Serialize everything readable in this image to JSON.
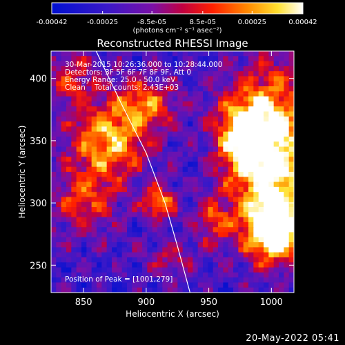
{
  "chart_data": {
    "type": "heatmap",
    "title": "Reconstructed RHESSI Image",
    "xlabel": "Heliocentric X (arcsec)",
    "ylabel": "Heliocentric Y (arcsec)",
    "xlim": [
      824,
      1018
    ],
    "ylim": [
      228,
      422
    ],
    "xticks": [
      850,
      900,
      950,
      1000
    ],
    "yticks": [
      250,
      300,
      350,
      400
    ],
    "colorbar": {
      "ticks": [
        "-0.00042",
        "-0.00025",
        "-8.5e-05",
        "8.5e-05",
        "0.00025",
        "0.00042"
      ],
      "tick_values": [
        -0.00042,
        -0.00025,
        -8.5e-05,
        8.5e-05,
        0.00025,
        0.00042
      ],
      "range": [
        -0.00042,
        0.00042
      ],
      "units_label": "(photons cm⁻² s⁻¹ asec⁻²)",
      "colormap": "blue-purple-red-orange-yellow-white"
    },
    "annotations": [
      "30-Mar-2015 10:26:36.000 to 10:28:44.000",
      "Detectors: 3F 5F 6F 7F 8F 9F, Att 0",
      "Energy Range: 25.0 - 50.0 keV",
      "Clean    Total counts: 2.43E+03"
    ],
    "peak_label": "Position of Peak = [1001,279]",
    "peak": [
      1001,
      279
    ],
    "limb_curve": [
      [
        860,
        422
      ],
      [
        880,
        380
      ],
      [
        900,
        340
      ],
      [
        915,
        300
      ],
      [
        925,
        265
      ],
      [
        935,
        228
      ]
    ],
    "bright_regions": [
      {
        "x": 1000,
        "y": 340,
        "sx": 22,
        "sy": 45,
        "amp": 1.0
      },
      {
        "x": 1001,
        "y": 279,
        "sx": 14,
        "sy": 16,
        "amp": 1.05
      },
      {
        "x": 975,
        "y": 355,
        "sx": 14,
        "sy": 22,
        "amp": 0.6
      },
      {
        "x": 870,
        "y": 350,
        "sx": 22,
        "sy": 22,
        "amp": 0.7
      },
      {
        "x": 900,
        "y": 380,
        "sx": 18,
        "sy": 14,
        "amp": 0.5
      },
      {
        "x": 910,
        "y": 300,
        "sx": 9,
        "sy": 9,
        "amp": 0.7
      },
      {
        "x": 850,
        "y": 300,
        "sx": 18,
        "sy": 18,
        "amp": 0.45
      },
      {
        "x": 955,
        "y": 285,
        "sx": 10,
        "sy": 14,
        "amp": 0.45
      },
      {
        "x": 840,
        "y": 400,
        "sx": 14,
        "sy": 14,
        "amp": 0.4
      },
      {
        "x": 920,
        "y": 255,
        "sx": 14,
        "sy": 10,
        "amp": 0.3
      }
    ]
  },
  "footer": {
    "date": "20-May-2022 05:41"
  }
}
